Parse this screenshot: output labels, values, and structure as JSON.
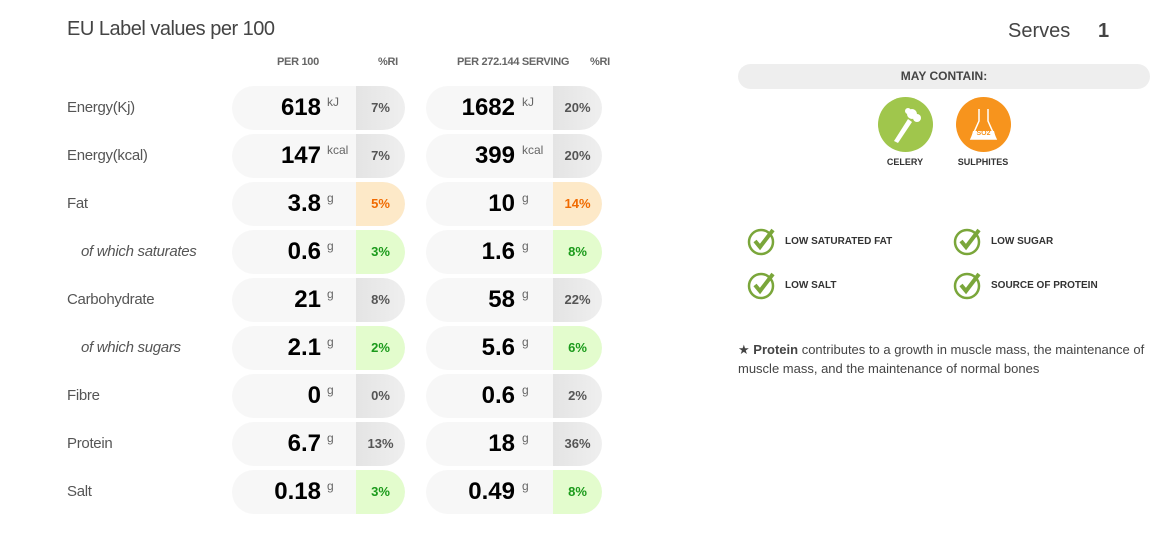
{
  "title": "EU Label values per 100",
  "columns": {
    "per100": "PER 100",
    "ri1": "%RI",
    "perServing": "PER 272.144 SERVING",
    "ri2": "%RI"
  },
  "rows": [
    {
      "label": "Energy(Kj)",
      "sub": false,
      "v100": "618",
      "unit": "kJ",
      "ri100": "7%",
      "c100": "gray",
      "vs": "1682",
      "ris": "20%",
      "cs": "gray"
    },
    {
      "label": "Energy(kcal)",
      "sub": false,
      "v100": "147",
      "unit": "kcal",
      "ri100": "7%",
      "c100": "gray",
      "vs": "399",
      "ris": "20%",
      "cs": "gray"
    },
    {
      "label": "Fat",
      "sub": false,
      "v100": "3.8",
      "unit": "g",
      "ri100": "5%",
      "c100": "orange",
      "vs": "10",
      "ris": "14%",
      "cs": "orange"
    },
    {
      "label": "of which saturates",
      "sub": true,
      "v100": "0.6",
      "unit": "g",
      "ri100": "3%",
      "c100": "green",
      "vs": "1.6",
      "ris": "8%",
      "cs": "green"
    },
    {
      "label": "Carbohydrate",
      "sub": false,
      "v100": "21",
      "unit": "g",
      "ri100": "8%",
      "c100": "gray",
      "vs": "58",
      "ris": "22%",
      "cs": "gray"
    },
    {
      "label": "of which sugars",
      "sub": true,
      "v100": "2.1",
      "unit": "g",
      "ri100": "2%",
      "c100": "green",
      "vs": "5.6",
      "ris": "6%",
      "cs": "green"
    },
    {
      "label": "Fibre",
      "sub": false,
      "v100": "0",
      "unit": "g",
      "ri100": "0%",
      "c100": "gray",
      "vs": "0.6",
      "ris": "2%",
      "cs": "gray"
    },
    {
      "label": "Protein",
      "sub": false,
      "v100": "6.7",
      "unit": "g",
      "ri100": "13%",
      "c100": "gray",
      "vs": "18",
      "ris": "36%",
      "cs": "gray"
    },
    {
      "label": "Salt",
      "sub": false,
      "v100": "0.18",
      "unit": "g",
      "ri100": "3%",
      "c100": "green",
      "vs": "0.49",
      "ris": "8%",
      "cs": "green"
    }
  ],
  "serves": {
    "label": "Serves",
    "value": "1"
  },
  "mayContain": {
    "title": "MAY CONTAIN:",
    "items": [
      {
        "label": "CELERY",
        "icon": "celery-icon",
        "color": "#a0c64c"
      },
      {
        "label": "SULPHITES",
        "icon": "flask-icon",
        "color": "#f7941d",
        "formula": "SO2"
      }
    ]
  },
  "claims": [
    "LOW SATURATED FAT",
    "LOW SUGAR",
    "LOW SALT",
    "SOURCE OF PROTEIN"
  ],
  "note": {
    "star": "★",
    "bold": "Protein",
    "text": " contributes to a growth in muscle mass, the maintenance of muscle mass, and the maintenance of normal bones"
  }
}
